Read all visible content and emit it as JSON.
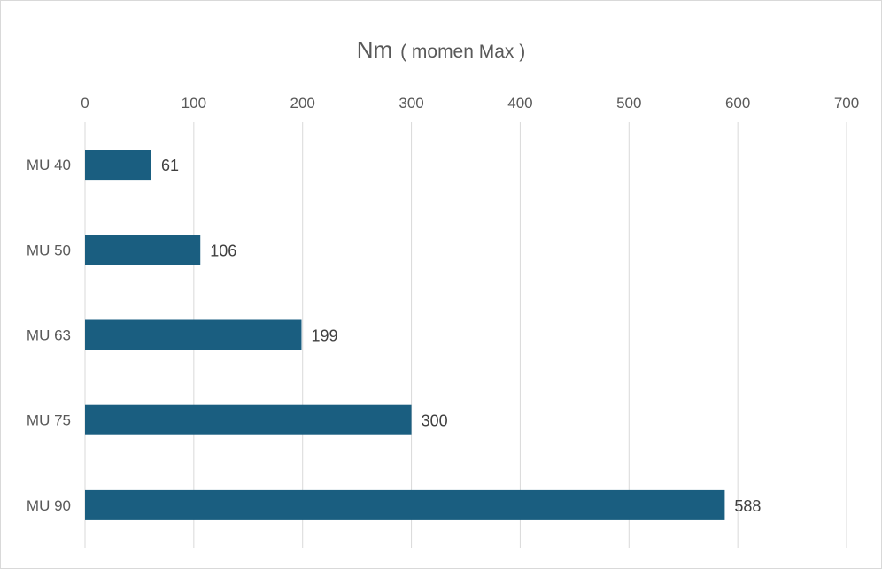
{
  "chart_data": {
    "type": "bar",
    "orientation": "horizontal",
    "title": "Nm",
    "subtitle": "( momen Max )",
    "categories": [
      "MU 40",
      "MU 50",
      "MU 63",
      "MU 75",
      "MU 90"
    ],
    "values": [
      61,
      106,
      199,
      300,
      588
    ],
    "data_labels": [
      "61",
      "106",
      "199",
      "300",
      "588"
    ],
    "xlim": [
      0,
      700
    ],
    "x_ticks": [
      "0",
      "100",
      "200",
      "300",
      "400",
      "500",
      "600",
      "700"
    ],
    "x_axis_position": "top",
    "grid": true,
    "legend": "none",
    "bar_color": "#1a5e80",
    "gridline_color": "#d9d9d9",
    "text_color": "#595959"
  }
}
